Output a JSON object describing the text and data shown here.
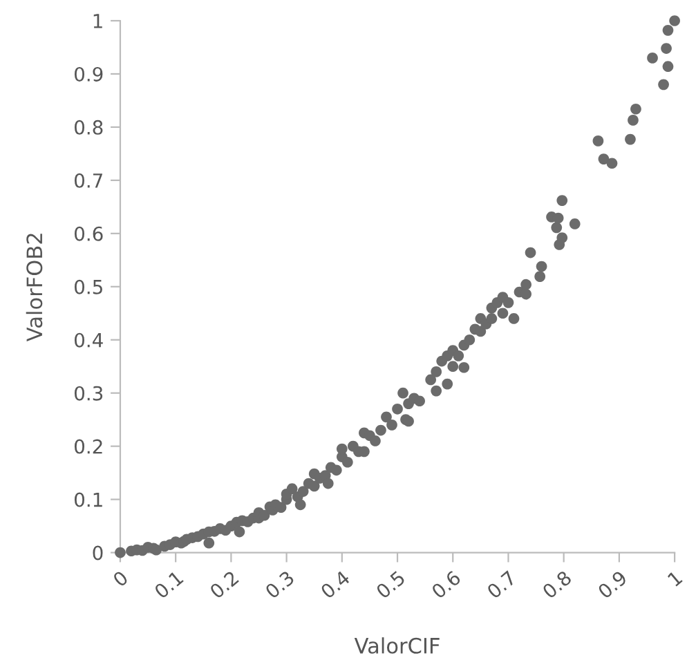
{
  "chart_data": {
    "type": "scatter",
    "xlabel": "ValorCIF",
    "ylabel": "ValorFOB2",
    "xlim": [
      0,
      1
    ],
    "ylim": [
      0,
      1
    ],
    "xticks": [
      0,
      0.1,
      0.2,
      0.3,
      0.4,
      0.5,
      0.6,
      0.7,
      0.8,
      0.9,
      1
    ],
    "yticks": [
      0,
      0.1,
      0.2,
      0.3,
      0.4,
      0.5,
      0.6,
      0.7,
      0.8,
      0.9,
      1
    ],
    "grid": false,
    "marker": "circle",
    "series": [
      {
        "color": "#6b6b6b",
        "x": [
          0,
          0.02,
          0.03,
          0.04,
          0.05,
          0.06,
          0.065,
          0.08,
          0.09,
          0.1,
          0.11,
          0.115,
          0.12,
          0.13,
          0.14,
          0.15,
          0.16,
          0.16,
          0.17,
          0.18,
          0.19,
          0.2,
          0.21,
          0.215,
          0.22,
          0.23,
          0.24,
          0.25,
          0.25,
          0.26,
          0.27,
          0.275,
          0.28,
          0.29,
          0.3,
          0.3,
          0.31,
          0.32,
          0.325,
          0.33,
          0.34,
          0.35,
          0.35,
          0.36,
          0.37,
          0.375,
          0.38,
          0.39,
          0.4,
          0.4,
          0.41,
          0.42,
          0.43,
          0.44,
          0.44,
          0.45,
          0.46,
          0.47,
          0.48,
          0.49,
          0.5,
          0.51,
          0.515,
          0.52,
          0.52,
          0.53,
          0.54,
          0.56,
          0.57,
          0.57,
          0.58,
          0.59,
          0.59,
          0.6,
          0.6,
          0.61,
          0.62,
          0.62,
          0.63,
          0.64,
          0.65,
          0.65,
          0.66,
          0.67,
          0.67,
          0.68,
          0.69,
          0.69,
          0.7,
          0.71,
          0.72,
          0.732,
          0.732,
          0.74,
          0.757,
          0.76,
          0.778,
          0.787,
          0.79,
          0.792,
          0.797,
          0.797,
          0.82,
          0.862,
          0.872,
          0.887,
          0.92,
          0.925,
          0.93,
          0.96,
          0.98,
          0.985,
          0.988,
          0.988,
          1
        ],
        "values": [
          0,
          0.003,
          0.005,
          0.004,
          0.01,
          0.008,
          0.005,
          0.012,
          0.015,
          0.02,
          0.018,
          0.021,
          0.025,
          0.028,
          0.03,
          0.035,
          0.039,
          0.018,
          0.04,
          0.045,
          0.042,
          0.05,
          0.057,
          0.039,
          0.06,
          0.058,
          0.065,
          0.065,
          0.075,
          0.07,
          0.086,
          0.08,
          0.09,
          0.085,
          0.1,
          0.11,
          0.12,
          0.105,
          0.09,
          0.115,
          0.13,
          0.148,
          0.125,
          0.14,
          0.145,
          0.13,
          0.16,
          0.155,
          0.18,
          0.195,
          0.17,
          0.2,
          0.19,
          0.225,
          0.19,
          0.22,
          0.21,
          0.23,
          0.255,
          0.24,
          0.27,
          0.3,
          0.25,
          0.28,
          0.247,
          0.29,
          0.285,
          0.325,
          0.304,
          0.34,
          0.36,
          0.317,
          0.37,
          0.35,
          0.38,
          0.37,
          0.348,
          0.39,
          0.4,
          0.42,
          0.416,
          0.44,
          0.43,
          0.46,
          0.44,
          0.47,
          0.48,
          0.45,
          0.47,
          0.44,
          0.49,
          0.504,
          0.486,
          0.564,
          0.519,
          0.538,
          0.631,
          0.611,
          0.629,
          0.579,
          0.662,
          0.592,
          0.618,
          0.774,
          0.74,
          0.732,
          0.777,
          0.813,
          0.834,
          0.93,
          0.88,
          0.948,
          0.982,
          0.914,
          1
        ]
      }
    ]
  }
}
